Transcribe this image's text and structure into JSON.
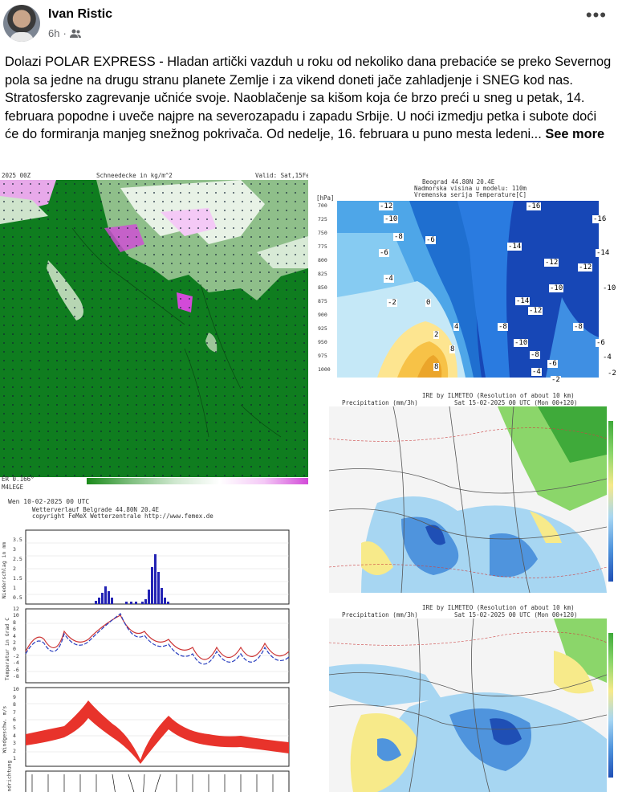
{
  "post": {
    "author": "Ivan Ristic",
    "time": "6h",
    "audience_icon": "friends-icon",
    "more_icon": "more-options-icon",
    "text": "Dolazi POLAR EXPRESS - Hladan artički vazduh u roku od nekoliko dana prebaciće se preko Severnog pola sa jedne na drugu stranu planete Zemlje i za vikend doneti jače zahladjenje i SNEG kod nas. Stratosfersko zagrevanje učniće svoje. Naoblačenje sa kišom koja će brzo preći u sneg u petak, 14. februara popodne i uveče najpre na severozapadu i zapadu Srbije. U noći izmedju petka i subote doći će do formiranja manjeg snežnog pokrivača. Od nedelje, 16. februara u puno mesta ledeni...",
    "see_more": "See more"
  },
  "images": {
    "snow_map": {
      "top_left": "2025 00Z",
      "title": "Schneedecke in kg/m^2",
      "top_right": "Valid: Sat,15Fe",
      "bottom_left": "ER 0.166°",
      "bottom_left2": "M4LEGE"
    },
    "belgrade_cross": {
      "line1": "Beograd    44.80N 20.4E",
      "line2": "Nadmorska visina u modelu: 110m",
      "line3": "Vremenska serija Temperature[C]",
      "unit": "[hPa]",
      "pressure_levels": [
        "700",
        "725",
        "750",
        "775",
        "800",
        "825",
        "850",
        "875",
        "900",
        "925",
        "950",
        "975",
        "1000"
      ],
      "labels": [
        "-12",
        "-10",
        "-8",
        "-6",
        "-6",
        "-4",
        "-2",
        "0",
        "2",
        "4",
        "8",
        "8",
        "-16",
        "-14",
        "-12",
        "-10",
        "-14",
        "-12",
        "-8",
        "-10",
        "-8",
        "-6",
        "-4",
        "-2",
        "-16",
        "-14",
        "-12",
        "-10",
        "-8",
        "-6",
        "-4",
        "-2"
      ]
    },
    "precip_map_1": {
      "title": "IRE by ILMETEO (Resolution of about 10 km)",
      "sub_left": "Precipitation (mm/3h)",
      "sub_right": "Sat 15-02-2025 00 UTC (Mon 00+120)"
    },
    "meteogram": {
      "header": "Wen 10-02-2025 00 UTC",
      "line2": "Wetterverlauf Belgrade  44.80N 20.4E",
      "line3": "copyright FeMeX Wetterzentrale http://www.femex.de",
      "ylabel_precip": "Niederschlag in mm",
      "ylabel_temp": "Temperatur in Grad C",
      "ylabel_wind": "Windgeschw. m/s",
      "ylabel_dir": "Windrichtung",
      "precip_ticks": [
        "3.5",
        "3",
        "2.5",
        "2",
        "1.5",
        "1",
        "0.5"
      ],
      "temp_ticks": [
        "12",
        "10",
        "8",
        "6",
        "4",
        "2",
        "0",
        "-2",
        "-4",
        "-6",
        "-8"
      ],
      "wind_ticks": [
        "10",
        "9",
        "8",
        "7",
        "6",
        "5",
        "4",
        "3",
        "2",
        "1"
      ]
    },
    "precip_map_2": {
      "title": "IRE by ILMETEO (Resolution of about 10 km)",
      "sub_left": "Precipitation (mm/3h)",
      "sub_right": "Sat 15-02-2025 00 UTC (Mon 00+120)"
    },
    "colors": {
      "snow_green": "#0f7d1f",
      "snow_magenta": "#d24ad8",
      "wind_red": "#e8332b",
      "precip_bar": "#2323b4"
    }
  }
}
